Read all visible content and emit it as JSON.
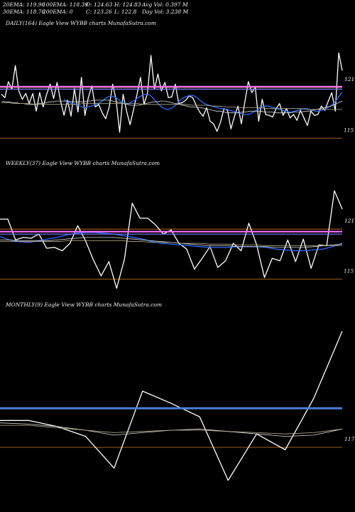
{
  "header": {
    "ema20": "20EMA: 119.96",
    "ema100": "100EMA: 118.39",
    "open": "O: 124.63",
    "high": "H: 124.83",
    "avgvol": "Avg Vol: 0.397 M",
    "ema30": "30EMA: 118.76",
    "ema200": "200EMA: 0",
    "close": "C: 123.26",
    "low": "L: 122.8",
    "dayvol": "Day Vol: 3.238 M"
  },
  "chart_data": [
    {
      "type": "line",
      "title": "DAILY(164) Eagle  View  WYBB charts MunafaSutra.com",
      "ylim": [
        113,
        128
      ],
      "reference_lines": [
        121,
        115
      ],
      "tick_labels": [
        "121",
        "115"
      ],
      "series": [
        {
          "values": [
            120.2,
            119.8,
            121.7,
            120.8,
            123.6,
            120.6,
            119.6,
            120.3,
            119.1,
            120.3,
            118.2,
            120.4,
            118.7,
            120.2,
            121.4,
            119.7,
            121.6,
            119.4,
            117.7,
            119.5,
            117.6,
            120.9,
            118.1,
            122.2,
            117.7,
            119.8,
            121.2,
            118.7,
            119.0,
            118.0,
            117.3,
            118.7,
            121.4,
            119.5,
            115.7,
            120.2,
            118.2,
            116.6,
            118.4,
            120.2,
            122.2,
            119.0,
            120.3,
            124.8,
            120.8,
            122.6,
            120.6,
            121.6,
            119.8,
            119.9,
            121.4,
            119.1,
            119.2,
            119.5,
            120.0,
            119.8,
            118.9,
            118.1,
            117.6,
            118.6,
            117.0,
            116.7,
            115.8,
            116.9,
            118.5,
            118.3,
            116.1,
            117.6,
            118.8,
            116.7,
            119.3,
            121.7,
            120.4,
            121.0,
            117.0,
            119.6,
            117.8,
            117.7,
            117.5,
            118.5,
            119.1,
            117.7,
            118.5,
            117.4,
            117.8,
            117.1,
            118.3,
            117.4,
            116.5,
            118.2,
            117.7,
            117.8,
            118.8,
            118.3,
            119.4,
            120.4,
            118.2,
            125.1,
            123.0
          ]
        },
        {
          "values": [
            119.6,
            119.3,
            119.2,
            119.1,
            119.0,
            118.9,
            118.7,
            118.6,
            118.7,
            118.8,
            118.9,
            119.0,
            119.2,
            119.4,
            119.7,
            119.9,
            120.0,
            119.9,
            119.7,
            119.4,
            119.2,
            119.1,
            119.1,
            119.3,
            119.5,
            119.8,
            120.0,
            120.2,
            120.2,
            120.1,
            119.8,
            119.4,
            119.0,
            118.7,
            118.5,
            118.4,
            118.5,
            118.7,
            119.0,
            119.4,
            119.7,
            119.9,
            120.0,
            120.1,
            120.0,
            119.8,
            119.5,
            119.2,
            119.0,
            118.9,
            118.8,
            118.7,
            118.6,
            118.5,
            118.5,
            118.4,
            118.3,
            118.2,
            118.1,
            118.0,
            117.9,
            117.8,
            117.8,
            117.9,
            118.1,
            118.3,
            118.5,
            118.7,
            118.8,
            118.8,
            118.7,
            118.6,
            118.5,
            118.4,
            118.3,
            118.2,
            118.1,
            118.1,
            118.2,
            118.3,
            118.4,
            118.5,
            118.5,
            118.4,
            118.3,
            118.2,
            118.2,
            118.3,
            118.4,
            118.6,
            118.8,
            119.1,
            119.5,
            120.0,
            120.4
          ]
        },
        {
          "values": [
            119.4,
            119.3,
            119.3,
            119.2,
            119.2,
            119.1,
            119.1,
            119.0,
            119.0,
            119.0,
            119.1,
            119.1,
            119.2,
            119.3,
            119.3,
            119.4,
            119.4,
            119.4,
            119.4,
            119.3,
            119.3,
            119.3,
            119.3,
            119.4,
            119.4,
            119.5,
            119.5,
            119.5,
            119.5,
            119.5,
            119.4,
            119.3,
            119.2,
            119.1,
            119.0,
            118.9,
            118.9,
            118.9,
            119.0,
            119.1,
            119.2,
            119.3,
            119.3,
            119.4,
            119.4,
            119.3,
            119.2,
            119.1,
            119.0,
            118.9,
            118.8,
            118.7,
            118.7,
            118.6,
            118.6,
            118.5,
            118.4,
            118.3,
            118.2,
            118.2,
            118.1,
            118.0,
            118.0,
            118.0,
            118.0,
            118.1,
            118.1,
            118.2,
            118.2,
            118.2,
            118.2,
            118.1,
            118.1,
            118.1,
            118.0,
            118.0,
            118.0,
            118.0,
            118.0,
            118.1,
            118.1,
            118.1,
            118.2,
            118.2,
            118.3,
            118.4,
            118.5,
            118.6,
            118.7,
            118.8,
            119.0,
            119.2,
            119.4
          ]
        },
        {
          "values": [
            119.2,
            119.2,
            119.1,
            119.1,
            119.1,
            119.0,
            119.0,
            119.0,
            119.0,
            119.0,
            119.0,
            119.0,
            119.1,
            119.1,
            119.1,
            119.1,
            119.1,
            119.1,
            119.1,
            119.1,
            119.1,
            119.0,
            119.0,
            119.0,
            119.0,
            119.0,
            119.0,
            119.0,
            118.9,
            118.9,
            118.9,
            118.8,
            118.8,
            118.7,
            118.7,
            118.6,
            118.6,
            118.6,
            118.6,
            118.5,
            118.5,
            118.5,
            118.5,
            118.5,
            118.5,
            118.4,
            118.4,
            118.4,
            118.4,
            118.4,
            118.4
          ]
        },
        {
          "values": [
            121.1,
            121.1
          ]
        },
        {
          "values": [
            120.8,
            120.8
          ]
        }
      ]
    },
    {
      "type": "line",
      "title": "WEEKLY(37) Eagle  View  WYBB charts MunafaSutra.com",
      "ylim": [
        113,
        128
      ],
      "reference_lines": [
        121,
        115
      ],
      "tick_labels": [
        "121",
        "115"
      ],
      "series": [
        {
          "values": [
            122.2,
            122.2,
            119.7,
            120.0,
            119.9,
            120.4,
            118.7,
            118.8,
            118.4,
            119.3,
            121.4,
            119.6,
            117.3,
            115.4,
            117.1,
            113.9,
            117.4,
            124.1,
            122.3,
            122.3,
            121.5,
            120.4,
            120.9,
            119.3,
            118.6,
            116.2,
            117.5,
            118.9,
            116.4,
            117.2,
            119.3,
            118.4,
            121.7,
            119.1,
            115.2,
            117.5,
            117.2,
            119.7,
            117.1,
            119.8,
            116.3,
            119.1,
            119.0,
            125.6,
            123.4
          ]
        },
        {
          "values": [
            120.1,
            119.7,
            119.5,
            119.4,
            119.6,
            119.8,
            120.0,
            120.3,
            120.5,
            120.6,
            120.6,
            120.5,
            120.4,
            120.2,
            120.0,
            119.8,
            119.5,
            119.3,
            119.2,
            119.1,
            119.0,
            118.9,
            118.8,
            118.8,
            118.8,
            118.9,
            118.9,
            118.9,
            118.8,
            118.6,
            118.5,
            118.4,
            118.4,
            118.5,
            118.6,
            118.9,
            119.3
          ]
        },
        {
          "values": [
            119.7,
            119.7,
            119.6,
            119.6,
            119.6,
            119.6,
            119.7,
            119.8,
            119.9,
            120.0,
            120.0,
            120.0,
            120.0,
            119.9,
            119.8,
            119.7,
            119.6,
            119.5,
            119.4,
            119.3,
            119.2,
            119.1,
            119.0,
            119.0,
            119.0,
            118.9,
            118.9,
            118.9,
            118.9,
            118.8,
            118.8,
            118.8,
            118.8,
            118.9,
            119.0,
            119.1,
            119.2
          ]
        },
        {
          "values": [
            119.5,
            119.5,
            119.5,
            119.5,
            119.5,
            119.5,
            119.5,
            119.6,
            119.6,
            119.6,
            119.6,
            119.6,
            119.6,
            119.6,
            119.5,
            119.5,
            119.4,
            119.4,
            119.4,
            119.3,
            119.3,
            119.3,
            119.2,
            119.2,
            119.2,
            119.1,
            119.1,
            119.1,
            119.0,
            119.0,
            119.0,
            119.0,
            119.0,
            119.0,
            119.0,
            119.0,
            119.0
          ]
        },
        {
          "values": [
            120.7,
            120.7
          ]
        },
        {
          "values": [
            120.4,
            120.4
          ]
        }
      ]
    },
    {
      "type": "line",
      "title": "MONTHLY(9) Eagle  View  WYBB charts MunafaSutra.com",
      "ylim": [
        112,
        128
      ],
      "reference_lines": [
        117
      ],
      "tick_labels": [
        "117"
      ],
      "series": [
        {
          "values": [
            119.2,
            119.2,
            118.7,
            117.9,
            115.3,
            121.6,
            120.6,
            119.5,
            114.3,
            118.1,
            116.8,
            121.0,
            126.5
          ]
        },
        {
          "values": [
            119.0,
            118.9,
            118.7,
            118.4,
            118.0,
            118.2,
            118.4,
            118.5,
            118.3,
            118.1,
            117.9,
            118.0,
            118.5
          ]
        },
        {
          "values": [
            118.8,
            118.8,
            118.6,
            118.4,
            118.2,
            118.3,
            118.4,
            118.4,
            118.3,
            118.2,
            118.1,
            118.2,
            118.5
          ]
        },
        {
          "values": [
            120.2,
            120.2
          ]
        }
      ]
    }
  ]
}
